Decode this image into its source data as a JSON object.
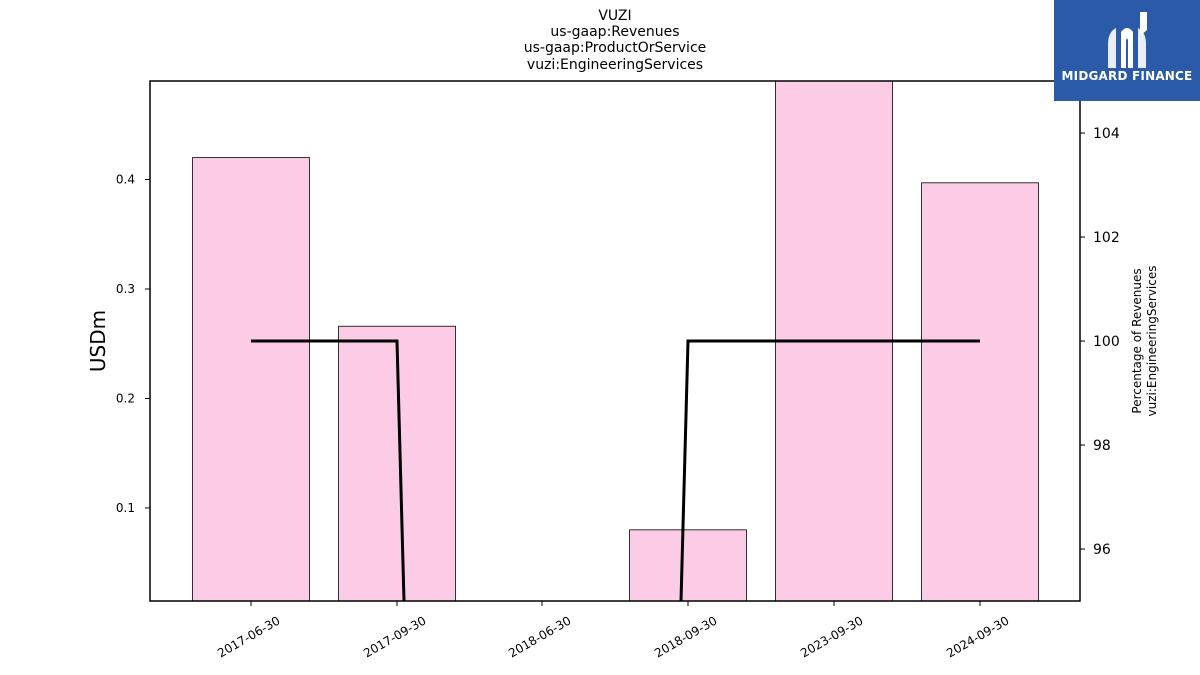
{
  "chart_data": {
    "type": "bar",
    "title": [
      "VUZI",
      "us-gaap:Revenues",
      "us-gaap:ProductOrService",
      "vuzi:EngineeringServices"
    ],
    "categories": [
      "2017-06-30",
      "2017-09-30",
      "2018-06-30",
      "2018-09-30",
      "2023-09-30",
      "2024-09-30"
    ],
    "series": [
      {
        "values": [
          0.42,
          0.266,
          null,
          0.08,
          0.49,
          0.397
        ],
        "axis": "left",
        "kind": "bar",
        "color": "#fccbe6"
      },
      {
        "values": [
          100,
          100,
          null,
          100,
          100,
          100
        ],
        "axis": "right",
        "kind": "line",
        "color": "#000000"
      }
    ],
    "line_breaks": [
      {
        "from": "2017-09-30",
        "to_y": 95
      },
      {
        "from_y": 95,
        "to": "2018-09-30"
      }
    ],
    "ylabel": "USDm",
    "ylim": [
      0.015,
      0.49
    ],
    "yticks": [
      0.1,
      0.2,
      0.3,
      0.4
    ],
    "ylabel_right": [
      "Percentage of Revenues",
      "vuzi:EngineeringServices"
    ],
    "ylim_right": [
      95,
      105
    ],
    "yticks_right": [
      96,
      98,
      100,
      102,
      104
    ],
    "grid": false,
    "legend": "none"
  },
  "logo": {
    "text": "MIDGARD FINANCE",
    "background": "#2b5aa8"
  }
}
